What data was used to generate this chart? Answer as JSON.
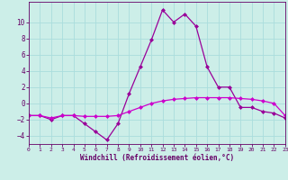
{
  "x": [
    0,
    1,
    2,
    3,
    4,
    5,
    6,
    7,
    8,
    9,
    10,
    11,
    12,
    13,
    14,
    15,
    16,
    17,
    18,
    19,
    20,
    21,
    22,
    23
  ],
  "line1": [
    -1.5,
    -1.5,
    -2.0,
    -1.5,
    -1.5,
    -2.5,
    -3.5,
    -4.5,
    -2.5,
    1.2,
    4.5,
    7.8,
    11.5,
    10.0,
    11.0,
    9.5,
    4.5,
    2.0,
    2.0,
    -0.5,
    -0.5,
    -1.0,
    -1.2,
    -1.8
  ],
  "line2": [
    -1.5,
    -1.5,
    -1.8,
    -1.5,
    -1.5,
    -1.6,
    -1.6,
    -1.6,
    -1.5,
    -1.0,
    -0.5,
    0.0,
    0.3,
    0.5,
    0.6,
    0.7,
    0.7,
    0.7,
    0.7,
    0.6,
    0.5,
    0.3,
    0.0,
    -1.5
  ],
  "line1_color": "#990099",
  "line2_color": "#cc00cc",
  "bg_color": "#cceee8",
  "grid_color": "#aadddd",
  "axis_color": "#660066",
  "text_color": "#660066",
  "xlabel": "Windchill (Refroidissement éolien,°C)",
  "xlim": [
    0,
    23
  ],
  "ylim": [
    -5,
    12.5
  ],
  "yticks": [
    -4,
    -2,
    0,
    2,
    4,
    6,
    8,
    10
  ],
  "xticks": [
    0,
    1,
    2,
    3,
    4,
    5,
    6,
    7,
    8,
    9,
    10,
    11,
    12,
    13,
    14,
    15,
    16,
    17,
    18,
    19,
    20,
    21,
    22,
    23
  ],
  "marker": "D",
  "markersize": 2,
  "linewidth": 0.9
}
